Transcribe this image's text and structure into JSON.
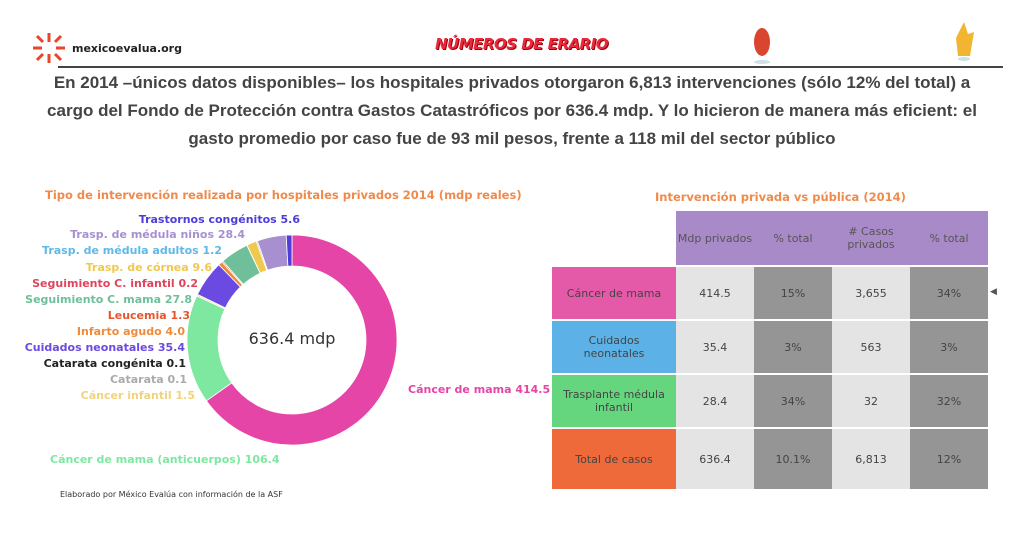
{
  "header": {
    "site": "mexicoevalua.org",
    "brand": "NÚMEROS DE ERARIO",
    "headline": "En 2014 –únicos datos disponibles– los hospitales privados otorgaron 6,813 intervenciones (sólo 12% del total) a cargo del Fondo de Protección contra Gastos Catastróficos por 636.4 mdp. Y lo hicieron de manera más eficient: el gasto promedio por caso fue de 93 mil pesos, frente a 118 mil del sector público"
  },
  "chart_data": {
    "type": "pie",
    "title": "Tipo de intervención realizada por hospitales privados 2014 (mdp reales)",
    "center_label": "636.4 mdp",
    "slices": [
      {
        "label": "Cáncer de mama",
        "value": 414.5,
        "text": "Cáncer de mama 414.5",
        "color": "#e545a6"
      },
      {
        "label": "Cáncer de mama (anticuerpos)",
        "value": 106.4,
        "text": "Cáncer de mama (anticuerpos) 106.4",
        "color": "#7ee8a0"
      },
      {
        "label": "Cáncer infantil",
        "value": 1.5,
        "text": "Cáncer infantil 1.5",
        "color": "#f2d37a"
      },
      {
        "label": "Catarata",
        "value": 0.1,
        "text": "Catarata 0.1",
        "color": "#aaaaaa"
      },
      {
        "label": "Catarata congénita",
        "value": 0.1,
        "text": "Catarata congénita 0.1",
        "color": "#222222"
      },
      {
        "label": "Cuidados neonatales",
        "value": 35.4,
        "text": "Cuidados neonatales 35.4",
        "color": "#6a4ae0"
      },
      {
        "label": "Infarto agudo",
        "value": 4.0,
        "text": "Infarto agudo 4.0",
        "color": "#f08a3a"
      },
      {
        "label": "Leucemia",
        "value": 1.3,
        "text": "Leucemia 1.3",
        "color": "#e4552e"
      },
      {
        "label": "Seguimiento C. mama",
        "value": 27.8,
        "text": "Seguimiento C. mama 27.8",
        "color": "#6fbf9a"
      },
      {
        "label": "Seguimiento C. infantil",
        "value": 0.2,
        "text": "Seguimiento C. infantil 0.2",
        "color": "#e0445a"
      },
      {
        "label": "Trasp. de córnea",
        "value": 9.6,
        "text": "Trasp. de córnea 9.6",
        "color": "#f0c84e"
      },
      {
        "label": "Trasp. de médula adultos",
        "value": 1.2,
        "text": "Trasp. de médula adultos 1.2",
        "color": "#5fb8e6"
      },
      {
        "label": "Trasp. de médula niños",
        "value": 28.4,
        "text": "Trasp. de médula niños 28.4",
        "color": "#a78fd0"
      },
      {
        "label": "Trastornos congénitos",
        "value": 5.6,
        "text": "Trastornos congénitos 5.6",
        "color": "#4e3ed8"
      }
    ]
  },
  "table": {
    "title": "Intervención privada vs pública (2014)",
    "headers": [
      "",
      "Mdp privados",
      "% total",
      "# Casos privados",
      "% total"
    ],
    "rows": [
      {
        "label": "Cáncer de mama",
        "color": "#e55aa8",
        "cells": [
          "414.5",
          "15%",
          "3,655",
          "34%"
        ]
      },
      {
        "label": "Cuidados neonatales",
        "color": "#5cb2e6",
        "cells": [
          "35.4",
          "3%",
          "563",
          "3%"
        ]
      },
      {
        "label": "Trasplante médula infantil",
        "color": "#66d67e",
        "cells": [
          "28.4",
          "34%",
          "32",
          "32%"
        ]
      },
      {
        "label": "Total de casos",
        "color": "#ee6a3a",
        "cells": [
          "636.4",
          "10.1%",
          "6,813",
          "12%"
        ]
      }
    ],
    "row_marker": "◀"
  },
  "footnote": "Elaborado por México Evalúa con información de la ASF"
}
